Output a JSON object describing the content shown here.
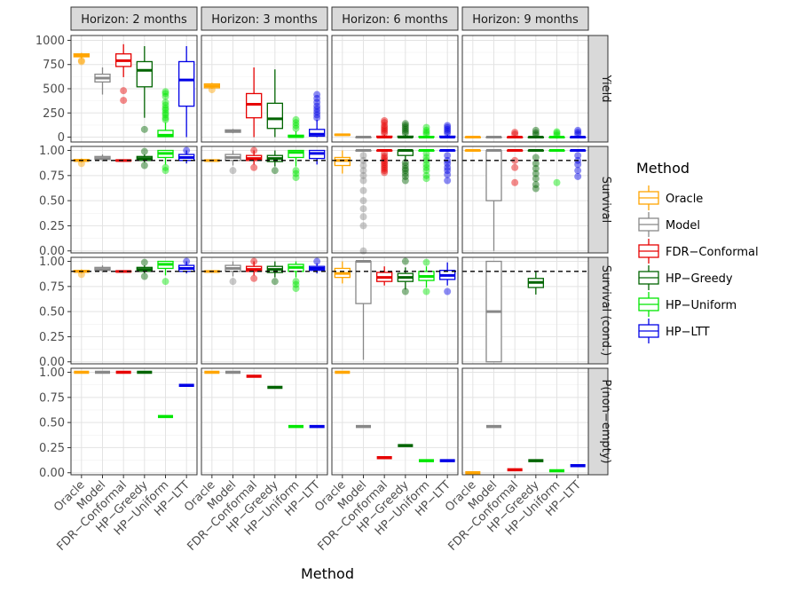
{
  "chart_data": {
    "type": "box",
    "xlabel": "Method",
    "methods": [
      "Oracle",
      "Model",
      "FDR−Conformal",
      "HP−Greedy",
      "HP−Uniform",
      "HP−LTT"
    ],
    "colors": {
      "Oracle": "#FFA500",
      "Model": "#888888",
      "FDR−Conformal": "#E60000",
      "HP−Greedy": "#006400",
      "HP−Uniform": "#00E600",
      "HP−LTT": "#0000E6"
    },
    "legend": {
      "title": "Method",
      "entries": [
        "Oracle",
        "Model",
        "FDR−Conformal",
        "HP−Greedy",
        "HP−Uniform",
        "HP−LTT"
      ]
    },
    "columns": [
      "Horizon: 2 months",
      "Horizon: 3 months",
      "Horizon: 6 months",
      "Horizon: 9 months"
    ],
    "rows": [
      {
        "label": "Yield",
        "ylim": [
          -50,
          1050
        ],
        "yticks": [
          0,
          250,
          500,
          750,
          1000
        ],
        "ytick_labels": [
          "0",
          "250",
          "500",
          "750",
          "1000"
        ],
        "hline": null
      },
      {
        "label": "Survival",
        "ylim": [
          -0.02,
          1.04
        ],
        "yticks": [
          0,
          0.25,
          0.5,
          0.75,
          1.0
        ],
        "ytick_labels": [
          "0.00",
          "0.25",
          "0.50",
          "0.75",
          "1.00"
        ],
        "hline": 0.9
      },
      {
        "label": "Survival (cond.)",
        "ylim": [
          -0.02,
          1.04
        ],
        "yticks": [
          0,
          0.25,
          0.5,
          0.75,
          1.0
        ],
        "ytick_labels": [
          "0.00",
          "0.25",
          "0.50",
          "0.75",
          "1.00"
        ],
        "hline": 0.9
      },
      {
        "label": "P(non−empty)",
        "ylim": [
          -0.02,
          1.04
        ],
        "yticks": [
          0,
          0.25,
          0.5,
          0.75,
          1.0
        ],
        "ytick_labels": [
          "0.00",
          "0.25",
          "0.50",
          "0.75",
          "1.00"
        ],
        "hline": null
      }
    ],
    "panels": [
      [
        [
          {
            "q1": 830,
            "med": 845,
            "q3": 860,
            "lo": 810,
            "hi": 870,
            "out": [
              790,
              780
            ]
          },
          {
            "q1": 570,
            "med": 610,
            "q3": 650,
            "lo": 440,
            "hi": 720,
            "out": []
          },
          {
            "q1": 730,
            "med": 790,
            "q3": 860,
            "lo": 620,
            "hi": 960,
            "out": [
              480,
              380
            ]
          },
          {
            "q1": 520,
            "med": 690,
            "q3": 780,
            "lo": 200,
            "hi": 940,
            "out": [
              80
            ]
          },
          {
            "q1": 5,
            "med": 20,
            "q3": 70,
            "lo": 0,
            "hi": 150,
            "out": [
              470,
              450,
              420,
              360,
              330,
              300,
              280,
              250,
              230,
              200,
              180
            ]
          },
          {
            "q1": 320,
            "med": 590,
            "q3": 780,
            "lo": 0,
            "hi": 940,
            "out": []
          }
        ],
        [
          {
            "q1": 510,
            "med": 530,
            "q3": 550,
            "lo": 500,
            "hi": 560,
            "out": [
              490
            ]
          },
          {
            "q1": 50,
            "med": 60,
            "q3": 75,
            "lo": 40,
            "hi": 85,
            "out": []
          },
          {
            "q1": 200,
            "med": 340,
            "q3": 450,
            "lo": 0,
            "hi": 720,
            "out": []
          },
          {
            "q1": 90,
            "med": 190,
            "q3": 350,
            "lo": 0,
            "hi": 700,
            "out": []
          },
          {
            "q1": 0,
            "med": 5,
            "q3": 20,
            "lo": 0,
            "hi": 60,
            "out": [
              90,
              120,
              150,
              180
            ]
          },
          {
            "q1": 10,
            "med": 30,
            "q3": 80,
            "lo": 0,
            "hi": 180,
            "out": [
              200,
              230,
              260,
              290,
              320,
              360,
              400,
              440
            ]
          }
        ],
        [
          {
            "q1": 20,
            "med": 25,
            "q3": 30,
            "lo": 15,
            "hi": 35,
            "out": []
          },
          {
            "q1": 0,
            "med": 0,
            "q3": 0,
            "lo": 0,
            "hi": 0,
            "out": []
          },
          {
            "q1": 0,
            "med": 0,
            "q3": 10,
            "lo": 0,
            "hi": 25,
            "out": [
              40,
              60,
              80,
              100,
              120,
              150,
              170
            ]
          },
          {
            "q1": 0,
            "med": 0,
            "q3": 10,
            "lo": 0,
            "hi": 25,
            "out": [
              40,
              60,
              80,
              100,
              120,
              140
            ]
          },
          {
            "q1": 0,
            "med": 0,
            "q3": 5,
            "lo": 0,
            "hi": 15,
            "out": [
              30,
              50,
              70,
              100
            ]
          },
          {
            "q1": 0,
            "med": 0,
            "q3": 10,
            "lo": 0,
            "hi": 25,
            "out": [
              40,
              60,
              80,
              100,
              120
            ]
          }
        ],
        [
          {
            "q1": 0,
            "med": 0,
            "q3": 0,
            "lo": 0,
            "hi": 0,
            "out": []
          },
          {
            "q1": 0,
            "med": 0,
            "q3": 0,
            "lo": 0,
            "hi": 0,
            "out": []
          },
          {
            "q1": 0,
            "med": 0,
            "q3": 0,
            "lo": 0,
            "hi": 10,
            "out": [
              30,
              50
            ]
          },
          {
            "q1": 0,
            "med": 0,
            "q3": 0,
            "lo": 0,
            "hi": 10,
            "out": [
              25,
              45,
              70
            ]
          },
          {
            "q1": 0,
            "med": 0,
            "q3": 0,
            "lo": 0,
            "hi": 5,
            "out": [
              20,
              40,
              55
            ]
          },
          {
            "q1": 0,
            "med": 0,
            "q3": 0,
            "lo": 0,
            "hi": 10,
            "out": [
              30,
              50,
              70
            ]
          }
        ]
      ],
      [
        [
          {
            "q1": 0.895,
            "med": 0.9,
            "q3": 0.91,
            "lo": 0.88,
            "hi": 0.92,
            "out": [
              0.87
            ]
          },
          {
            "q1": 0.91,
            "med": 0.92,
            "q3": 0.94,
            "lo": 0.89,
            "hi": 0.96,
            "out": []
          },
          {
            "q1": 0.895,
            "med": 0.9,
            "q3": 0.905,
            "lo": 0.89,
            "hi": 0.91,
            "out": []
          },
          {
            "q1": 0.9,
            "med": 0.92,
            "q3": 0.94,
            "lo": 0.88,
            "hi": 0.96,
            "out": [
              0.85,
              0.99
            ]
          },
          {
            "q1": 0.93,
            "med": 0.97,
            "q3": 1.0,
            "lo": 0.86,
            "hi": 1.0,
            "out": [
              0.8,
              0.83
            ]
          },
          {
            "q1": 0.9,
            "med": 0.93,
            "q3": 0.96,
            "lo": 0.87,
            "hi": 1.0,
            "out": [
              1.0
            ]
          }
        ],
        [
          {
            "q1": 0.895,
            "med": 0.9,
            "q3": 0.905,
            "lo": 0.89,
            "hi": 0.91,
            "out": []
          },
          {
            "q1": 0.9,
            "med": 0.93,
            "q3": 0.96,
            "lo": 0.85,
            "hi": 1.0,
            "out": [
              0.8
            ]
          },
          {
            "q1": 0.9,
            "med": 0.92,
            "q3": 0.95,
            "lo": 0.86,
            "hi": 1.0,
            "out": [
              0.83,
              1.0
            ]
          },
          {
            "q1": 0.89,
            "med": 0.92,
            "q3": 0.95,
            "lo": 0.84,
            "hi": 1.0,
            "out": [
              0.8
            ]
          },
          {
            "q1": 0.93,
            "med": 0.98,
            "q3": 1.0,
            "lo": 0.84,
            "hi": 1.0,
            "out": [
              0.8,
              0.77,
              0.73
            ]
          },
          {
            "q1": 0.92,
            "med": 0.97,
            "q3": 1.0,
            "lo": 0.86,
            "hi": 1.0,
            "out": []
          }
        ],
        [
          {
            "q1": 0.85,
            "med": 0.9,
            "q3": 0.93,
            "lo": 0.77,
            "hi": 1.0,
            "out": []
          },
          {
            "q1": 1.0,
            "med": 1.0,
            "q3": 1.0,
            "lo": 1.0,
            "hi": 1.0,
            "out": [
              0.95,
              0.9,
              0.85,
              0.8,
              0.75,
              0.7,
              0.6,
              0.5,
              0.42,
              0.34,
              0.25,
              0.0
            ]
          },
          {
            "q1": 1.0,
            "med": 1.0,
            "q3": 1.0,
            "lo": 1.0,
            "hi": 1.0,
            "out": [
              0.97,
              0.94,
              0.92,
              0.9,
              0.88,
              0.86,
              0.84,
              0.82,
              0.8,
              0.78
            ]
          },
          {
            "q1": 0.95,
            "med": 1.0,
            "q3": 1.0,
            "lo": 0.9,
            "hi": 1.0,
            "out": [
              0.88,
              0.85,
              0.82,
              0.8,
              0.77,
              0.74,
              0.7
            ]
          },
          {
            "q1": 1.0,
            "med": 1.0,
            "q3": 1.0,
            "lo": 1.0,
            "hi": 1.0,
            "out": [
              0.97,
              0.93,
              0.9,
              0.86,
              0.83,
              0.8,
              0.75,
              0.72
            ]
          },
          {
            "q1": 1.0,
            "med": 1.0,
            "q3": 1.0,
            "lo": 1.0,
            "hi": 1.0,
            "out": [
              0.95,
              0.9,
              0.87,
              0.83,
              0.8,
              0.76,
              0.7
            ]
          }
        ],
        [
          {
            "q1": 1.0,
            "med": 1.0,
            "q3": 1.0,
            "lo": 1.0,
            "hi": 1.0,
            "out": []
          },
          {
            "q1": 0.5,
            "med": 1.0,
            "q3": 1.0,
            "lo": 0.0,
            "hi": 1.0,
            "out": []
          },
          {
            "q1": 1.0,
            "med": 1.0,
            "q3": 1.0,
            "lo": 1.0,
            "hi": 1.0,
            "out": [
              0.9,
              0.83,
              0.68
            ]
          },
          {
            "q1": 1.0,
            "med": 1.0,
            "q3": 1.0,
            "lo": 1.0,
            "hi": 1.0,
            "out": [
              0.93,
              0.87,
              0.82,
              0.77,
              0.72,
              0.66,
              0.62
            ]
          },
          {
            "q1": 1.0,
            "med": 1.0,
            "q3": 1.0,
            "lo": 1.0,
            "hi": 1.0,
            "out": [
              0.68
            ]
          },
          {
            "q1": 1.0,
            "med": 1.0,
            "q3": 1.0,
            "lo": 1.0,
            "hi": 1.0,
            "out": [
              0.95,
              0.9,
              0.86,
              0.8,
              0.74
            ]
          }
        ]
      ],
      [
        [
          {
            "q1": 0.895,
            "med": 0.9,
            "q3": 0.91,
            "lo": 0.88,
            "hi": 0.92,
            "out": [
              0.87
            ]
          },
          {
            "q1": 0.91,
            "med": 0.92,
            "q3": 0.94,
            "lo": 0.89,
            "hi": 0.96,
            "out": []
          },
          {
            "q1": 0.895,
            "med": 0.9,
            "q3": 0.905,
            "lo": 0.89,
            "hi": 0.91,
            "out": []
          },
          {
            "q1": 0.9,
            "med": 0.92,
            "q3": 0.94,
            "lo": 0.88,
            "hi": 0.96,
            "out": [
              0.85,
              0.99
            ]
          },
          {
            "q1": 0.93,
            "med": 0.97,
            "q3": 1.0,
            "lo": 0.86,
            "hi": 1.0,
            "out": [
              0.8
            ]
          },
          {
            "q1": 0.9,
            "med": 0.93,
            "q3": 0.96,
            "lo": 0.88,
            "hi": 1.0,
            "out": [
              1.0
            ]
          }
        ],
        [
          {
            "q1": 0.895,
            "med": 0.9,
            "q3": 0.905,
            "lo": 0.89,
            "hi": 0.91,
            "out": []
          },
          {
            "q1": 0.9,
            "med": 0.93,
            "q3": 0.96,
            "lo": 0.85,
            "hi": 1.0,
            "out": [
              0.8
            ]
          },
          {
            "q1": 0.9,
            "med": 0.92,
            "q3": 0.95,
            "lo": 0.86,
            "hi": 1.0,
            "out": [
              0.83,
              1.0
            ]
          },
          {
            "q1": 0.89,
            "med": 0.92,
            "q3": 0.95,
            "lo": 0.84,
            "hi": 1.0,
            "out": [
              0.8
            ]
          },
          {
            "q1": 0.9,
            "med": 0.94,
            "q3": 0.97,
            "lo": 0.84,
            "hi": 1.0,
            "out": [
              0.8,
              0.77,
              0.73
            ]
          },
          {
            "q1": 0.91,
            "med": 0.93,
            "q3": 0.95,
            "lo": 0.88,
            "hi": 0.98,
            "out": [
              1.0
            ]
          }
        ],
        [
          {
            "q1": 0.84,
            "med": 0.88,
            "q3": 0.93,
            "lo": 0.78,
            "hi": 1.0,
            "out": []
          },
          {
            "q1": 0.58,
            "med": 1.0,
            "q3": 1.0,
            "lo": 0.02,
            "hi": 1.0,
            "out": []
          },
          {
            "q1": 0.8,
            "med": 0.84,
            "q3": 0.89,
            "lo": 0.76,
            "hi": 0.95,
            "out": []
          },
          {
            "q1": 0.8,
            "med": 0.84,
            "q3": 0.88,
            "lo": 0.72,
            "hi": 0.94,
            "out": [
              0.7,
              1.0
            ]
          },
          {
            "q1": 0.81,
            "med": 0.85,
            "q3": 0.9,
            "lo": 0.74,
            "hi": 0.95,
            "out": [
              0.7,
              0.99
            ]
          },
          {
            "q1": 0.82,
            "med": 0.86,
            "q3": 0.91,
            "lo": 0.76,
            "hi": 0.99,
            "out": [
              0.7
            ]
          }
        ],
        [
          {
            "skip": true
          },
          {
            "q1": 0.0,
            "med": 0.5,
            "q3": 1.0,
            "lo": 0.0,
            "hi": 1.0,
            "out": []
          },
          {
            "skip": true
          },
          {
            "q1": 0.74,
            "med": 0.79,
            "q3": 0.83,
            "lo": 0.67,
            "hi": 0.9,
            "out": []
          },
          {
            "skip": true
          },
          {
            "skip": true
          }
        ]
      ],
      [
        [
          {
            "value": 1.0
          },
          {
            "value": 1.0
          },
          {
            "value": 1.0
          },
          {
            "value": 1.0
          },
          {
            "value": 0.56
          },
          {
            "value": 0.87
          }
        ],
        [
          {
            "value": 1.0
          },
          {
            "value": 1.0
          },
          {
            "value": 0.96
          },
          {
            "value": 0.85
          },
          {
            "value": 0.46
          },
          {
            "value": 0.46
          }
        ],
        [
          {
            "value": 1.0
          },
          {
            "value": 0.46
          },
          {
            "value": 0.15
          },
          {
            "value": 0.27
          },
          {
            "value": 0.12
          },
          {
            "value": 0.12
          }
        ],
        [
          {
            "value": 0.0
          },
          {
            "value": 0.46
          },
          {
            "value": 0.03
          },
          {
            "value": 0.12
          },
          {
            "value": 0.02
          },
          {
            "value": 0.07
          }
        ]
      ]
    ]
  }
}
